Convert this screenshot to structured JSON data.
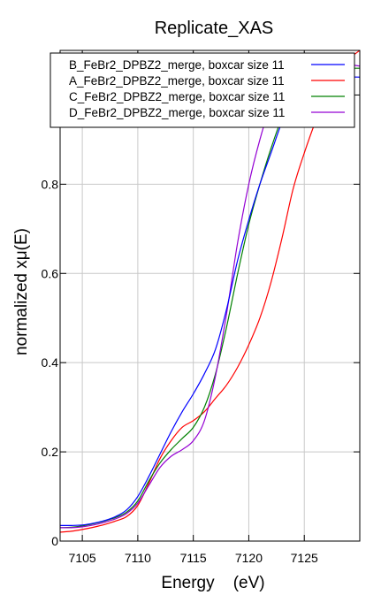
{
  "chart_data": {
    "type": "line",
    "title": "Replicate_XAS",
    "xlabel": "Energy    (eV)",
    "ylabel": "normalized xμ(E)",
    "xlim": [
      7103,
      7130
    ],
    "ylim": [
      0,
      1.1
    ],
    "xticks": [
      7105,
      7110,
      7115,
      7120,
      7125
    ],
    "xtick_labels": [
      "7105",
      "7110",
      "7115",
      "7120",
      "7125"
    ],
    "yticks": [
      0,
      0.2,
      0.4,
      0.6,
      0.8,
      1
    ],
    "ytick_labels": [
      "0",
      "0.2",
      "0.4",
      "0.6",
      "0.8",
      "1"
    ],
    "grid": true,
    "legend_position": "top-right",
    "series": [
      {
        "name": "B_FeBr2_DPBZ2_merge, boxcar size 11",
        "color": "#0000ff",
        "x": [
          7103,
          7104,
          7105,
          7106,
          7107,
          7108,
          7109,
          7110,
          7111,
          7112,
          7113,
          7114,
          7115,
          7116,
          7117,
          7118,
          7119,
          7120,
          7121,
          7122,
          7123,
          7124,
          7125,
          7126,
          7127,
          7128,
          7129,
          7130
        ],
        "y": [
          0.035,
          0.035,
          0.036,
          0.04,
          0.046,
          0.055,
          0.07,
          0.1,
          0.145,
          0.195,
          0.245,
          0.29,
          0.33,
          0.375,
          0.43,
          0.52,
          0.63,
          0.72,
          0.8,
          0.87,
          0.94,
          0.99,
          1.02,
          1.03,
          1.03,
          1.035,
          1.04,
          1.04
        ]
      },
      {
        "name": "A_FeBr2_DPBZ2_merge, boxcar size 11",
        "color": "#ff0000",
        "x": [
          7103,
          7104,
          7105,
          7106,
          7107,
          7108,
          7109,
          7110,
          7111,
          7112,
          7113,
          7114,
          7115,
          7116,
          7117,
          7118,
          7119,
          7120,
          7121,
          7122,
          7123,
          7124,
          7125,
          7126,
          7127,
          7128,
          7129,
          7130
        ],
        "y": [
          0.02,
          0.022,
          0.026,
          0.031,
          0.037,
          0.045,
          0.055,
          0.08,
          0.13,
          0.185,
          0.225,
          0.255,
          0.27,
          0.29,
          0.32,
          0.35,
          0.39,
          0.44,
          0.5,
          0.58,
          0.68,
          0.79,
          0.87,
          0.94,
          1.0,
          1.05,
          1.08,
          1.1
        ]
      },
      {
        "name": "C_FeBr2_DPBZ2_merge, boxcar size 11",
        "color": "#008000",
        "x": [
          7103,
          7104,
          7105,
          7106,
          7107,
          7108,
          7109,
          7110,
          7111,
          7112,
          7113,
          7114,
          7115,
          7116,
          7117,
          7118,
          7119,
          7120,
          7121,
          7122,
          7123,
          7124,
          7125,
          7126,
          7127,
          7128,
          7129,
          7130
        ],
        "y": [
          0.03,
          0.031,
          0.034,
          0.039,
          0.045,
          0.053,
          0.065,
          0.09,
          0.135,
          0.175,
          0.205,
          0.23,
          0.255,
          0.3,
          0.375,
          0.48,
          0.6,
          0.71,
          0.8,
          0.88,
          0.95,
          1.0,
          1.03,
          1.04,
          1.05,
          1.06,
          1.06,
          1.06
        ]
      },
      {
        "name": "D_FeBr2_DPBZ2_merge, boxcar size 11",
        "color": "#9400d3",
        "x": [
          7103,
          7104,
          7105,
          7106,
          7107,
          7108,
          7109,
          7110,
          7111,
          7112,
          7113,
          7114,
          7115,
          7116,
          7117,
          7118,
          7119,
          7120,
          7121,
          7122,
          7123,
          7124,
          7125,
          7126,
          7127,
          7128,
          7129,
          7130
        ],
        "y": [
          0.03,
          0.03,
          0.032,
          0.036,
          0.042,
          0.05,
          0.062,
          0.085,
          0.125,
          0.165,
          0.19,
          0.205,
          0.225,
          0.27,
          0.37,
          0.51,
          0.67,
          0.8,
          0.9,
          0.98,
          1.03,
          1.05,
          1.06,
          1.065,
          1.07,
          1.07,
          1.068,
          1.065
        ]
      }
    ]
  }
}
